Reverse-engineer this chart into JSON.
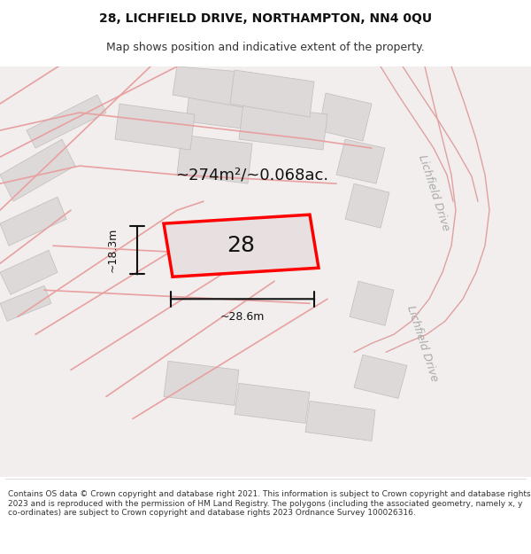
{
  "title_line1": "28, LICHFIELD DRIVE, NORTHAMPTON, NN4 0QU",
  "title_line2": "Map shows position and indicative extent of the property.",
  "footer_text": "Contains OS data © Crown copyright and database right 2021. This information is subject to Crown copyright and database rights 2023 and is reproduced with the permission of HM Land Registry. The polygons (including the associated geometry, namely x, y co-ordinates) are subject to Crown copyright and database rights 2023 Ordnance Survey 100026316.",
  "background_color": "#f5f0f0",
  "map_bg": "#f0eded",
  "plot_color": "#f0eded",
  "building_color": "#e0dada",
  "road_line_color": "#e8a0a0",
  "highlight_color": "#ff0000",
  "highlight_fill": "#e8dada",
  "dim_color": "#222222",
  "label_28": "28",
  "area_label": "~274m²/~0.068ac.",
  "dim_width": "~28.6m",
  "dim_height": "~18.3m",
  "road_label": "Lichfield Drive",
  "title_fontsize": 10,
  "subtitle_fontsize": 9,
  "footer_fontsize": 6.5,
  "label_fontsize": 14,
  "area_fontsize": 13,
  "dim_fontsize": 9,
  "road_fontsize": 9
}
